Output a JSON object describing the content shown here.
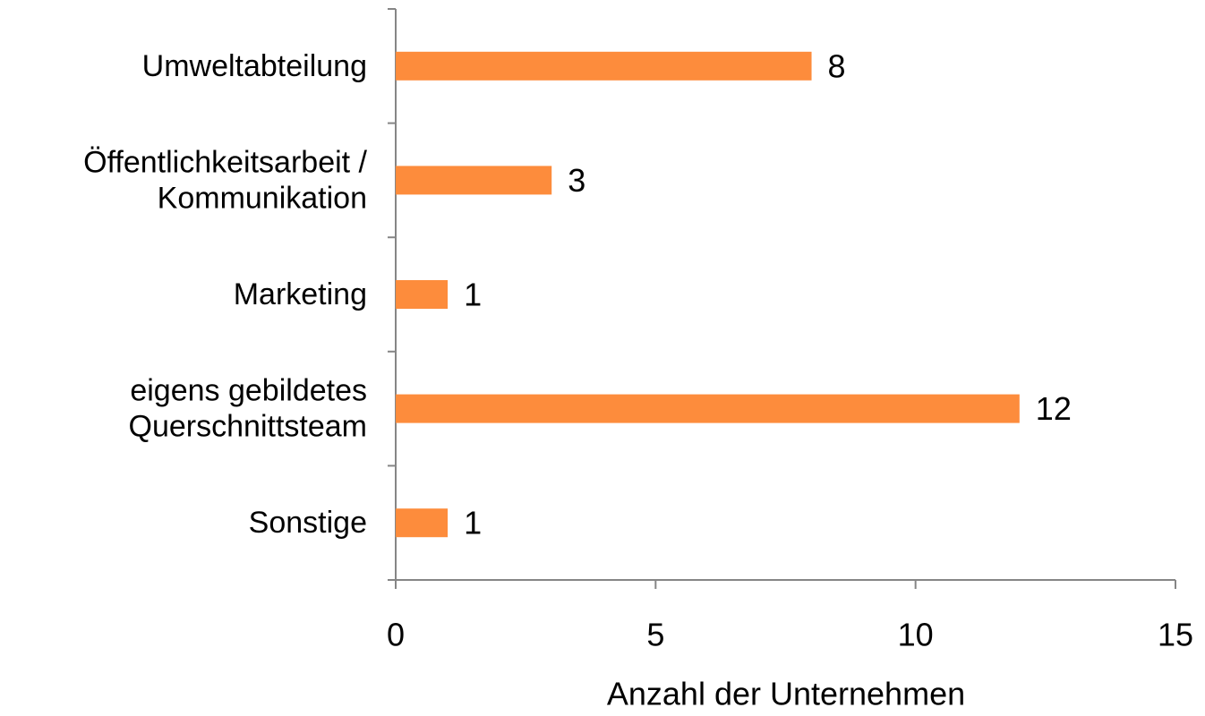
{
  "chart_data": {
    "type": "hbar",
    "categories": [
      [
        "Umweltabteilung"
      ],
      [
        "Öffentlichkeitsarbeit /",
        "Kommunikation"
      ],
      [
        "Marketing"
      ],
      [
        "eigens gebildetes",
        "Querschnittsteam"
      ],
      [
        "Sonstige"
      ]
    ],
    "values": [
      8,
      3,
      1,
      12,
      1
    ],
    "color": "#fd8c3c",
    "xlabel": "Anzahl der Unternehmen",
    "xlim": [
      0,
      15
    ],
    "xticks": [
      0,
      5,
      10,
      15
    ],
    "grid": false
  }
}
